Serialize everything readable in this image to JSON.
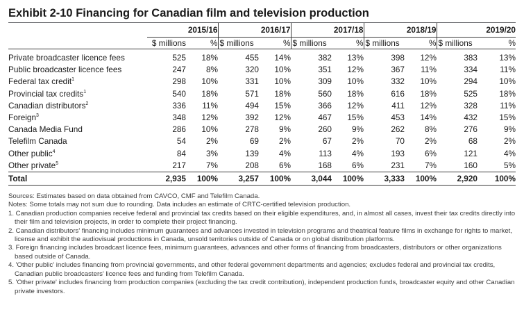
{
  "exhibit": {
    "title": "Exhibit 2-10  Financing for Canadian film and television production"
  },
  "table": {
    "years": [
      "2015/16",
      "2016/17",
      "2017/18",
      "2018/19",
      "2019/20"
    ],
    "unit_millions": "$ millions",
    "unit_percent": "%",
    "rows": [
      {
        "label": "Private broadcaster licence fees",
        "sup": "",
        "values": [
          [
            "525",
            "18%"
          ],
          [
            "455",
            "14%"
          ],
          [
            "382",
            "13%"
          ],
          [
            "398",
            "12%"
          ],
          [
            "383",
            "13%"
          ]
        ]
      },
      {
        "label": "Public broadcaster licence fees",
        "sup": "",
        "values": [
          [
            "247",
            "8%"
          ],
          [
            "320",
            "10%"
          ],
          [
            "351",
            "12%"
          ],
          [
            "367",
            "11%"
          ],
          [
            "334",
            "11%"
          ]
        ]
      },
      {
        "label": "Federal tax credit",
        "sup": "1",
        "values": [
          [
            "298",
            "10%"
          ],
          [
            "331",
            "10%"
          ],
          [
            "309",
            "10%"
          ],
          [
            "332",
            "10%"
          ],
          [
            "294",
            "10%"
          ]
        ]
      },
      {
        "label": "Provincial tax credits",
        "sup": "1",
        "values": [
          [
            "540",
            "18%"
          ],
          [
            "571",
            "18%"
          ],
          [
            "560",
            "18%"
          ],
          [
            "616",
            "18%"
          ],
          [
            "525",
            "18%"
          ]
        ]
      },
      {
        "label": "Canadian distributors",
        "sup": "2",
        "values": [
          [
            "336",
            "11%"
          ],
          [
            "494",
            "15%"
          ],
          [
            "366",
            "12%"
          ],
          [
            "411",
            "12%"
          ],
          [
            "328",
            "11%"
          ]
        ]
      },
      {
        "label": "Foreign",
        "sup": "3",
        "values": [
          [
            "348",
            "12%"
          ],
          [
            "392",
            "12%"
          ],
          [
            "467",
            "15%"
          ],
          [
            "453",
            "14%"
          ],
          [
            "432",
            "15%"
          ]
        ]
      },
      {
        "label": "Canada Media Fund",
        "sup": "",
        "values": [
          [
            "286",
            "10%"
          ],
          [
            "278",
            "9%"
          ],
          [
            "260",
            "9%"
          ],
          [
            "262",
            "8%"
          ],
          [
            "276",
            "9%"
          ]
        ]
      },
      {
        "label": "Telefilm Canada",
        "sup": "",
        "values": [
          [
            "54",
            "2%"
          ],
          [
            "69",
            "2%"
          ],
          [
            "67",
            "2%"
          ],
          [
            "70",
            "2%"
          ],
          [
            "68",
            "2%"
          ]
        ]
      },
      {
        "label": "Other public",
        "sup": "4",
        "values": [
          [
            "84",
            "3%"
          ],
          [
            "139",
            "4%"
          ],
          [
            "113",
            "4%"
          ],
          [
            "193",
            "6%"
          ],
          [
            "121",
            "4%"
          ]
        ]
      },
      {
        "label": "Other private",
        "sup": "5",
        "values": [
          [
            "217",
            "7%"
          ],
          [
            "208",
            "6%"
          ],
          [
            "168",
            "6%"
          ],
          [
            "231",
            "7%"
          ],
          [
            "160",
            "5%"
          ]
        ]
      }
    ],
    "total": {
      "label": "Total",
      "values": [
        [
          "2,935",
          "100%"
        ],
        [
          "3,257",
          "100%"
        ],
        [
          "3,044",
          "100%"
        ],
        [
          "3,333",
          "100%"
        ],
        [
          "2,920",
          "100%"
        ]
      ]
    }
  },
  "notes": {
    "sources": "Sources: Estimates based on data obtained from CAVCO, CMF and Telefilm Canada.",
    "notes_line": "Notes: Some totals may not sum due to rounding. Data includes an estimate of CRTC-certified television production.",
    "footnotes": [
      "1. Canadian production companies receive federal and provincial tax credits based on their eligible expenditures, and, in almost all cases, invest their tax credits directly into their film and television projects, in order to complete their project financing.",
      "2. Canadian distributors' financing includes minimum guarantees and advances invested in television programs and theatrical feature films in exchange for rights to market, license and exhibit the audiovisual productions in Canada, unsold territories outside of Canada or on global distribution platforms.",
      "3. Foreign financing includes broadcast licence fees, minimum guarantees, advances and other forms of financing from broadcasters, distributors or other organizations based outside of Canada.",
      "4. 'Other public' includes financing from provincial governments, and other federal government departments and agencies; excludes federal and provincial tax credits, Canadian public broadcasters' licence fees and funding from Telefilm Canada.",
      "5. 'Other private' includes financing from production companies (excluding the tax credit contribution), independent production funds, broadcaster equity and other Canadian private investors."
    ]
  }
}
